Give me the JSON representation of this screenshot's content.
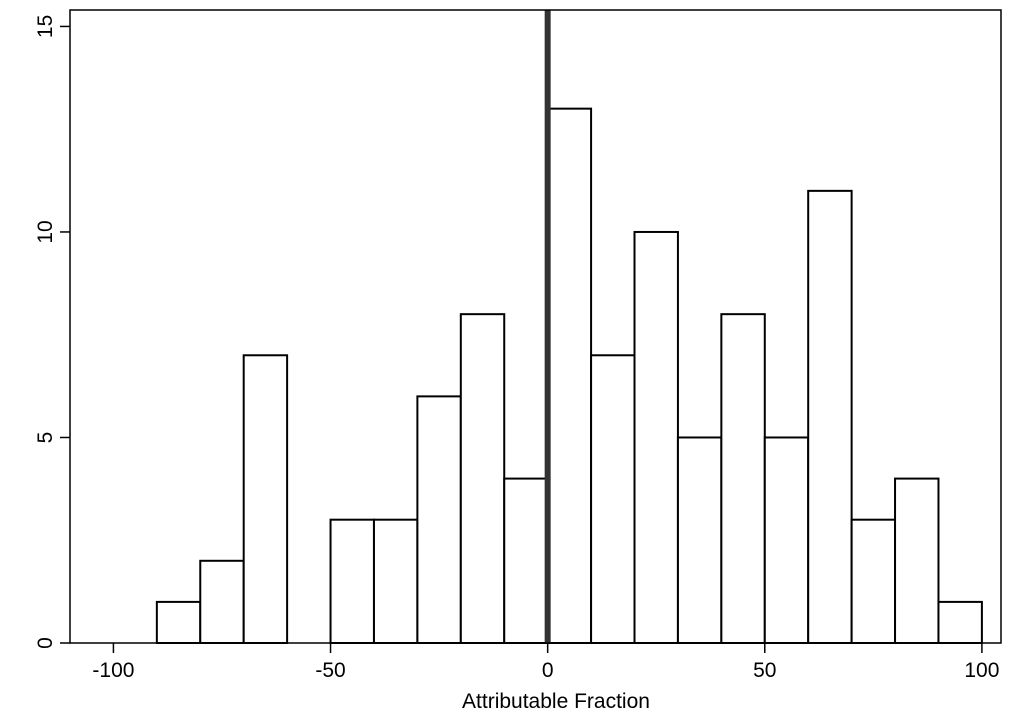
{
  "chart_data": {
    "type": "histogram",
    "x_label": "Attributable Fraction",
    "bins": [
      -90,
      -80,
      -70,
      -60,
      -50,
      -40,
      -30,
      -20,
      -10,
      0,
      10,
      20,
      30,
      40,
      50,
      60,
      70,
      80,
      90,
      100
    ],
    "values": [
      1,
      2,
      7,
      0,
      3,
      3,
      6,
      8,
      4,
      13,
      7,
      10,
      5,
      8,
      5,
      11,
      3,
      4,
      1
    ],
    "color": "#ffffff",
    "edge_color": "#000000",
    "xlim": [
      -110,
      104.4
    ],
    "xticks": [
      -100,
      -50,
      0,
      50,
      100
    ],
    "ylim": [
      0,
      15.4
    ],
    "yticks": [
      0,
      5,
      10,
      15
    ],
    "vline": 0,
    "vline_color": "#333333"
  }
}
